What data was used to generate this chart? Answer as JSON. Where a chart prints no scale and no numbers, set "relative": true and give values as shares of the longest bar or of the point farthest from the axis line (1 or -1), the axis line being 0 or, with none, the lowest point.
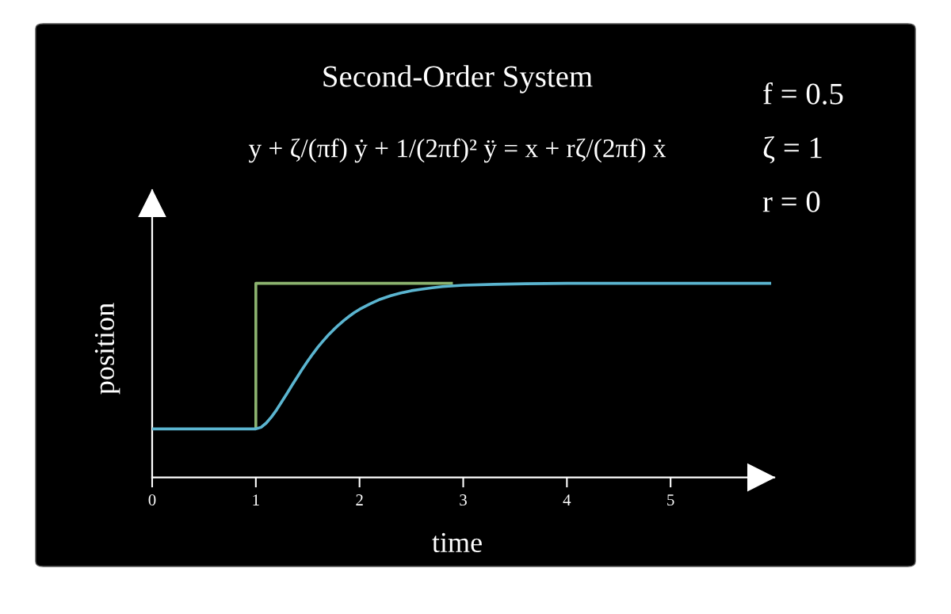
{
  "chart_data": {
    "type": "line",
    "title": "Second-Order System",
    "subtitle": "y + ζ/(πf) ẏ + 1/(2πf)² ÿ = x + rζ/(2πf) ẋ",
    "xlabel": "time",
    "ylabel": "position",
    "annotations": [
      "f = 0.5",
      "ζ = 1",
      "r = 0"
    ],
    "relative": true,
    "xlim": [
      0,
      6
    ],
    "xticks": [
      0,
      1,
      2,
      3,
      4,
      5
    ],
    "tick_labels": "x",
    "series": [
      {
        "color": "#8cb36f",
        "x": [
          1,
          1,
          2.9
        ],
        "values": [
          0.25,
          1,
          1
        ]
      },
      {
        "color": "#5bb5d0",
        "x": [
          0,
          1,
          1.05,
          1.1,
          1.15,
          1.2,
          1.25,
          1.3,
          1.35,
          1.4,
          1.45,
          1.5,
          1.55,
          1.6,
          1.65,
          1.7,
          1.75,
          1.8,
          1.85,
          1.9,
          1.95,
          2.0,
          2.1,
          2.2,
          2.3,
          2.4,
          2.5,
          2.6,
          2.7,
          2.8,
          3.0,
          3.3,
          3.6,
          4.0,
          5.0,
          5.97
        ],
        "values": [
          0.25,
          0.25,
          0.258,
          0.28,
          0.311,
          0.348,
          0.39,
          0.432,
          0.476,
          0.518,
          0.56,
          0.599,
          0.637,
          0.672,
          0.704,
          0.734,
          0.761,
          0.786,
          0.809,
          0.83,
          0.849,
          0.866,
          0.894,
          0.918,
          0.936,
          0.95,
          0.962,
          0.97,
          0.977,
          0.983,
          0.99,
          0.995,
          0.998,
          1,
          1,
          1
        ]
      }
    ]
  }
}
